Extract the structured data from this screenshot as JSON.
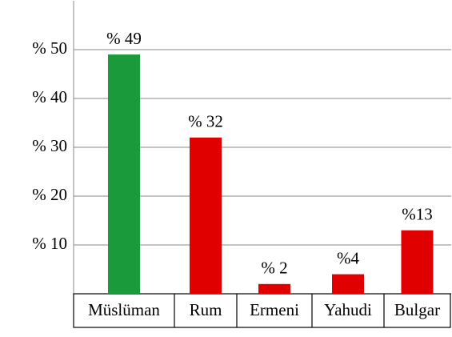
{
  "chart_data": {
    "type": "bar",
    "categories": [
      "Müslüman",
      "Rum",
      "Ermeni",
      "Yahudi",
      "Bulgar"
    ],
    "values": [
      49,
      32,
      2,
      4,
      13
    ],
    "value_labels": [
      "% 49",
      "% 32",
      "% 2",
      "%4",
      "%13"
    ],
    "colors": [
      "#1a9a3a",
      "#e00000",
      "#e00000",
      "#e00000",
      "#e00000"
    ],
    "ylim": [
      0,
      60
    ],
    "yticks": [
      {
        "value": 10,
        "label": "% 10"
      },
      {
        "value": 20,
        "label": "% 20"
      },
      {
        "value": 30,
        "label": "% 30"
      },
      {
        "value": 40,
        "label": "% 40"
      },
      {
        "value": 50,
        "label": "% 50"
      }
    ],
    "grid": true
  }
}
